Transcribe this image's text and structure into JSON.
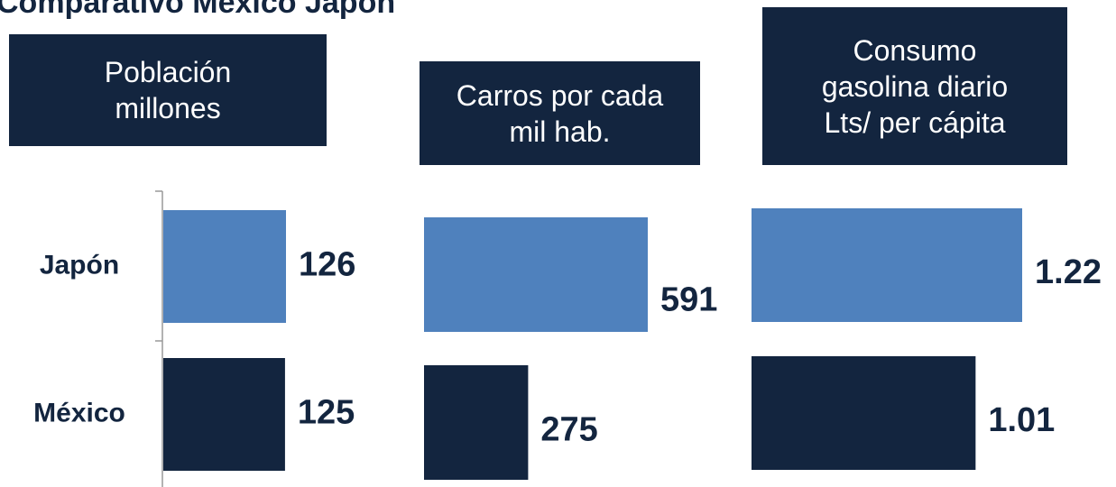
{
  "title": "Comparativo México Japón",
  "chart_data": [
    {
      "type": "bar",
      "title": "Población millones",
      "categories": [
        "Japón",
        "México"
      ],
      "values": [
        126,
        125
      ],
      "colors": [
        "#4f81bd",
        "#13253f"
      ]
    },
    {
      "type": "bar",
      "title": "Carros por cada mil hab.",
      "values": [
        591,
        275
      ],
      "colors": [
        "#4f81bd",
        "#13253f"
      ]
    },
    {
      "type": "bar",
      "title": "Consumo gasolina diario Lts/ per cápita",
      "values": [
        1.22,
        1.01
      ],
      "colors": [
        "#4f81bd",
        "#13253f"
      ]
    }
  ]
}
